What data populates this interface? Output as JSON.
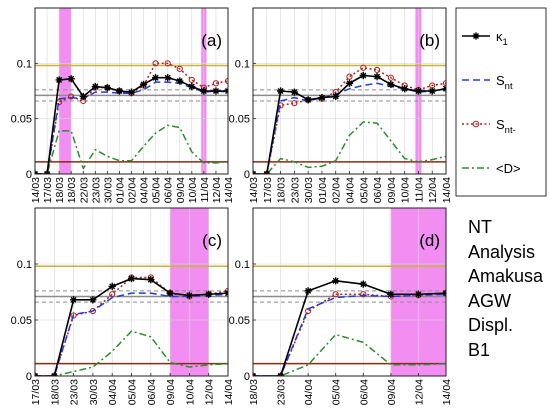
{
  "figure": {
    "info_lines": [
      "NT",
      "Analysis",
      "Amakusa",
      "AGW",
      "Displ.",
      "B1"
    ],
    "legend": [
      {
        "key": "kappa",
        "symbol": "κ",
        "sub": "1",
        "color": "#000000"
      },
      {
        "key": "snt",
        "symbol": "S",
        "sub": "nt",
        "color": "#1f3fd6"
      },
      {
        "key": "sntm",
        "symbol": "S",
        "sub": "nt-",
        "color": "#b22222"
      },
      {
        "key": "d",
        "symbol": "<D>",
        "sub": "",
        "color": "#2e8b2e"
      }
    ],
    "colors": {
      "threshold_upper": "#c8b432",
      "threshold_lower": "#8b2a10",
      "reference": "#8c8c8c",
      "highlight": "#f07af0"
    }
  },
  "chart_data": [
    {
      "type": "line",
      "panel_label": "(a)",
      "x": [
        "14/03",
        "17/03",
        "18/03",
        "18/03",
        "22/03",
        "23/03",
        "30/03",
        "01/04",
        "02/04",
        "04/04",
        "05/04",
        "06/04",
        "09/04",
        "10/04",
        "11/04",
        "12/04",
        "14/04"
      ],
      "ylim": [
        0,
        0.15
      ],
      "yticks": [
        0,
        0.05,
        0.1
      ],
      "ytick_labels": [
        "0",
        "0.05",
        "0.1"
      ],
      "thresholds": {
        "upper": 0.098,
        "lower": 0.011,
        "mean": 0.071,
        "band": [
          0.066,
          0.076
        ]
      },
      "highlights": [
        {
          "from": "18/03",
          "to": "18/03"
        },
        {
          "from": "11/04",
          "to": "11/04"
        }
      ],
      "series": [
        {
          "key": "kappa",
          "values": [
            0,
            0,
            0.085,
            0.086,
            0.07,
            0.079,
            0.078,
            0.075,
            0.074,
            0.081,
            0.087,
            0.087,
            0.084,
            0.079,
            0.075,
            0.075,
            0.075
          ]
        },
        {
          "key": "snt",
          "values": [
            0,
            0,
            0.068,
            0.069,
            0.068,
            0.074,
            0.074,
            0.073,
            0.073,
            0.076,
            0.083,
            0.083,
            0.082,
            0.078,
            0.074,
            0.075,
            0.074
          ]
        },
        {
          "key": "sntm",
          "values": [
            0,
            0,
            0.065,
            0.07,
            0.066,
            0.078,
            0.078,
            0.075,
            0.073,
            0.08,
            0.1,
            0.1,
            0.095,
            0.085,
            0.078,
            0.082,
            0.084
          ]
        },
        {
          "key": "d",
          "values": [
            0,
            0,
            0.039,
            0.039,
            0.005,
            0.022,
            0.016,
            0.012,
            0.012,
            0.025,
            0.037,
            0.044,
            0.042,
            0.02,
            0.01,
            0.01,
            0.011
          ]
        }
      ]
    },
    {
      "type": "line",
      "panel_label": "(b)",
      "x": [
        "14/03",
        "17/03",
        "18/03",
        "23/03",
        "30/03",
        "01/04",
        "02/04",
        "04/04",
        "05/04",
        "06/04",
        "09/04",
        "10/04",
        "11/04",
        "12/04",
        "14/04"
      ],
      "ylim": [
        0,
        0.15
      ],
      "yticks": [
        0,
        0.05,
        0.1
      ],
      "ytick_labels": [
        "0",
        "0.05",
        "0.1"
      ],
      "thresholds": {
        "upper": 0.098,
        "lower": 0.011,
        "mean": 0.071,
        "band": [
          0.066,
          0.076
        ]
      },
      "highlights": [
        {
          "from": "11/04",
          "to": "11/04"
        }
      ],
      "series": [
        {
          "key": "kappa",
          "values": [
            0,
            0,
            0.075,
            0.074,
            0.067,
            0.069,
            0.07,
            0.082,
            0.089,
            0.088,
            0.081,
            0.077,
            0.075,
            0.075,
            0.077
          ]
        },
        {
          "key": "snt",
          "values": [
            0,
            0,
            0.066,
            0.069,
            0.066,
            0.069,
            0.072,
            0.077,
            0.08,
            0.082,
            0.079,
            0.077,
            0.074,
            0.075,
            0.077
          ]
        },
        {
          "key": "sntm",
          "values": [
            0,
            0,
            0.062,
            0.064,
            0.067,
            0.068,
            0.074,
            0.088,
            0.096,
            0.094,
            0.087,
            0.08,
            0.076,
            0.08,
            0.082
          ]
        },
        {
          "key": "d",
          "values": [
            0,
            0,
            0.014,
            0.011,
            0.006,
            0.007,
            0.012,
            0.035,
            0.047,
            0.046,
            0.03,
            0.014,
            0.011,
            0.013,
            0.016
          ]
        }
      ]
    },
    {
      "type": "line",
      "panel_label": "(c)",
      "x": [
        "17/03",
        "18/03",
        "23/03",
        "30/03",
        "04/04",
        "05/04",
        "06/04",
        "09/04",
        "10/04",
        "12/04",
        "14/04"
      ],
      "ylim": [
        0,
        0.15
      ],
      "yticks": [
        0,
        0.05,
        0.1
      ],
      "ytick_labels": [
        "0",
        "0.05",
        "0.1"
      ],
      "thresholds": {
        "upper": 0.098,
        "lower": 0.011,
        "mean": 0.071,
        "band": [
          0.066,
          0.076
        ]
      },
      "highlights": [
        {
          "from": "09/04",
          "to": "12/04"
        }
      ],
      "series": [
        {
          "key": "kappa",
          "values": [
            0,
            0,
            0.068,
            0.068,
            0.08,
            0.087,
            0.086,
            0.074,
            0.072,
            0.073,
            0.074
          ]
        },
        {
          "key": "snt",
          "values": [
            0,
            0,
            0.055,
            0.058,
            0.07,
            0.074,
            0.074,
            0.071,
            0.071,
            0.072,
            0.073
          ]
        },
        {
          "key": "sntm",
          "values": [
            0,
            0,
            0.054,
            0.058,
            0.073,
            0.088,
            0.088,
            0.074,
            0.071,
            0.073,
            0.076
          ]
        },
        {
          "key": "d",
          "values": [
            0,
            0,
            0.004,
            0.008,
            0.022,
            0.04,
            0.035,
            0.012,
            0.008,
            0.01,
            0.011
          ]
        }
      ]
    },
    {
      "type": "line",
      "panel_label": "(d)",
      "x": [
        "18/03",
        "23/03",
        "04/04",
        "05/04",
        "06/04",
        "09/04",
        "12/04",
        "14/04"
      ],
      "ylim": [
        0,
        0.15
      ],
      "yticks": [
        0,
        0.05,
        0.1
      ],
      "ytick_labels": [
        "0",
        "0.05",
        "0.1"
      ],
      "thresholds": {
        "upper": 0.098,
        "lower": 0.011,
        "mean": 0.071,
        "band": [
          0.066,
          0.076
        ]
      },
      "highlights": [
        {
          "from": "09/04",
          "to": "14/04"
        }
      ],
      "series": [
        {
          "key": "kappa",
          "values": [
            0,
            0,
            0.076,
            0.085,
            0.082,
            0.073,
            0.073,
            0.074
          ]
        },
        {
          "key": "snt",
          "values": [
            0,
            0,
            0.06,
            0.07,
            0.072,
            0.071,
            0.072,
            0.073
          ]
        },
        {
          "key": "sntm",
          "values": [
            0,
            0,
            0.058,
            0.073,
            0.073,
            0.071,
            0.072,
            0.074
          ]
        },
        {
          "key": "d",
          "values": [
            0,
            0,
            0.01,
            0.037,
            0.03,
            0.01,
            0.01,
            0.011
          ]
        }
      ]
    }
  ]
}
